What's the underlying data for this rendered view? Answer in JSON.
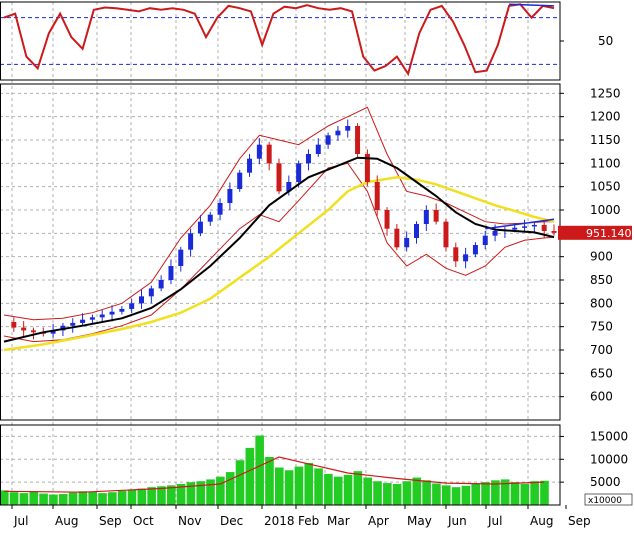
{
  "chart_data": {
    "type": "line",
    "x_labels": [
      "Jul",
      "Aug",
      "Sep",
      "Oct",
      "Nov",
      "Dec",
      "2018",
      "Feb",
      "Mar",
      "Apr",
      "May",
      "Jun",
      "Jul",
      "Aug",
      "Sep"
    ],
    "colors": {
      "background": "#ffffff",
      "grid": "#b0b0b0",
      "frame": "#000000",
      "up_candle": "#1a2ad8",
      "down_candle": "#cc1a1a",
      "bollinger": "#cc1a1a",
      "ma_short": "#000000",
      "ma_long": "#f0e020",
      "volume": "#22cc22",
      "volume_ma": "#cc1a1a",
      "oscillator": "#cc1a1a",
      "oscillator_signal": "#1a2ad8",
      "trend_line": "#1a2ad8",
      "price_tag_bg": "#cc1a1a",
      "price_tag_text": "#ffffff"
    },
    "panels": [
      {
        "id": "oscillator",
        "ylim": [
          0,
          100
        ],
        "y_ticks": [
          "50"
        ],
        "y_tick_values": [
          50
        ],
        "levels": [
          80,
          20
        ],
        "series_oscillator": [
          [
            0,
            80
          ],
          [
            1,
            85
          ],
          [
            2,
            30
          ],
          [
            3,
            15
          ],
          [
            4,
            60
          ],
          [
            5,
            85
          ],
          [
            6,
            55
          ],
          [
            7,
            40
          ],
          [
            8,
            90
          ],
          [
            9,
            93
          ],
          [
            10,
            92
          ],
          [
            11,
            90
          ],
          [
            12,
            88
          ],
          [
            13,
            92
          ],
          [
            14,
            90
          ],
          [
            15,
            92
          ],
          [
            16,
            90
          ],
          [
            17,
            85
          ],
          [
            18,
            55
          ],
          [
            19,
            80
          ],
          [
            20,
            95
          ],
          [
            21,
            92
          ],
          [
            22,
            88
          ],
          [
            23,
            45
          ],
          [
            24,
            85
          ],
          [
            25,
            94
          ],
          [
            26,
            92
          ],
          [
            27,
            96
          ],
          [
            28,
            92
          ],
          [
            29,
            90
          ],
          [
            30,
            92
          ],
          [
            31,
            88
          ],
          [
            32,
            30
          ],
          [
            33,
            12
          ],
          [
            34,
            18
          ],
          [
            35,
            30
          ],
          [
            36,
            8
          ],
          [
            37,
            60
          ],
          [
            38,
            90
          ],
          [
            39,
            95
          ],
          [
            40,
            75
          ],
          [
            41,
            45
          ],
          [
            42,
            10
          ],
          [
            43,
            12
          ],
          [
            44,
            45
          ],
          [
            45,
            95
          ],
          [
            46,
            97
          ],
          [
            47,
            80
          ],
          [
            48,
            95
          ],
          [
            49,
            92
          ]
        ],
        "series_signal": [
          [
            45,
            97
          ],
          [
            49,
            95
          ]
        ]
      },
      {
        "id": "price",
        "ylim": [
          550,
          1270
        ],
        "y_ticks": [
          "1250",
          "1200",
          "1150",
          "1100",
          "1050",
          "1000",
          "950",
          "900",
          "850",
          "800",
          "750",
          "700",
          "650",
          "600"
        ],
        "y_tick_values": [
          1250,
          1200,
          1150,
          1100,
          1050,
          1000,
          950,
          900,
          850,
          800,
          750,
          700,
          650,
          600
        ],
        "last_price": "951.140",
        "last_price_value": 951.14,
        "series_close": [
          [
            0,
            760
          ],
          [
            1,
            748
          ],
          [
            2,
            742
          ],
          [
            3,
            738
          ],
          [
            4,
            735
          ],
          [
            5,
            742
          ],
          [
            6,
            752
          ],
          [
            7,
            758
          ],
          [
            8,
            765
          ],
          [
            9,
            770
          ],
          [
            10,
            776
          ],
          [
            11,
            782
          ],
          [
            12,
            788
          ],
          [
            13,
            800
          ],
          [
            14,
            815
          ],
          [
            15,
            832
          ],
          [
            16,
            850
          ],
          [
            17,
            880
          ],
          [
            18,
            915
          ],
          [
            19,
            950
          ],
          [
            20,
            975
          ],
          [
            21,
            990
          ],
          [
            22,
            1015
          ],
          [
            23,
            1045
          ],
          [
            24,
            1080
          ],
          [
            25,
            1110
          ],
          [
            26,
            1140
          ],
          [
            27,
            1100
          ],
          [
            28,
            1040
          ],
          [
            29,
            1060
          ],
          [
            30,
            1100
          ],
          [
            31,
            1120
          ],
          [
            32,
            1140
          ],
          [
            33,
            1160
          ],
          [
            34,
            1170
          ],
          [
            35,
            1180
          ],
          [
            36,
            1120
          ],
          [
            37,
            1060
          ],
          [
            38,
            1000
          ],
          [
            39,
            960
          ],
          [
            40,
            920
          ],
          [
            41,
            940
          ],
          [
            42,
            970
          ],
          [
            43,
            1000
          ],
          [
            44,
            975
          ],
          [
            45,
            920
          ],
          [
            46,
            890
          ],
          [
            47,
            905
          ],
          [
            48,
            925
          ],
          [
            49,
            945
          ],
          [
            50,
            955
          ],
          [
            51,
            958
          ],
          [
            52,
            962
          ],
          [
            53,
            965
          ],
          [
            54,
            968
          ],
          [
            55,
            955
          ],
          [
            56,
            951
          ]
        ],
        "series_bb_upper": [
          [
            0,
            775
          ],
          [
            3,
            765
          ],
          [
            6,
            768
          ],
          [
            9,
            780
          ],
          [
            12,
            800
          ],
          [
            15,
            845
          ],
          [
            18,
            940
          ],
          [
            21,
            1010
          ],
          [
            24,
            1110
          ],
          [
            26,
            1160
          ],
          [
            28,
            1150
          ],
          [
            30,
            1140
          ],
          [
            33,
            1180
          ],
          [
            35,
            1200
          ],
          [
            37,
            1220
          ],
          [
            39,
            1120
          ],
          [
            41,
            1040
          ],
          [
            43,
            1030
          ],
          [
            45,
            1015
          ],
          [
            47,
            995
          ],
          [
            49,
            975
          ],
          [
            51,
            970
          ],
          [
            53,
            972
          ],
          [
            55,
            975
          ],
          [
            56,
            975
          ]
        ],
        "series_bb_lower": [
          [
            0,
            730
          ],
          [
            3,
            718
          ],
          [
            6,
            722
          ],
          [
            9,
            735
          ],
          [
            12,
            752
          ],
          [
            15,
            775
          ],
          [
            18,
            830
          ],
          [
            21,
            895
          ],
          [
            24,
            960
          ],
          [
            26,
            990
          ],
          [
            28,
            975
          ],
          [
            30,
            1020
          ],
          [
            33,
            1090
          ],
          [
            35,
            1100
          ],
          [
            37,
            1040
          ],
          [
            39,
            930
          ],
          [
            41,
            880
          ],
          [
            43,
            905
          ],
          [
            45,
            875
          ],
          [
            47,
            860
          ],
          [
            49,
            880
          ],
          [
            51,
            920
          ],
          [
            53,
            935
          ],
          [
            55,
            940
          ],
          [
            56,
            942
          ]
        ],
        "series_ma_short": [
          [
            0,
            718
          ],
          [
            4,
            738
          ],
          [
            8,
            752
          ],
          [
            12,
            768
          ],
          [
            15,
            790
          ],
          [
            18,
            830
          ],
          [
            21,
            880
          ],
          [
            24,
            940
          ],
          [
            27,
            1010
          ],
          [
            29,
            1040
          ],
          [
            31,
            1070
          ],
          [
            34,
            1095
          ],
          [
            36,
            1112
          ],
          [
            38,
            1110
          ],
          [
            40,
            1090
          ],
          [
            42,
            1060
          ],
          [
            44,
            1030
          ],
          [
            46,
            995
          ],
          [
            48,
            970
          ],
          [
            50,
            958
          ],
          [
            52,
            955
          ],
          [
            54,
            952
          ],
          [
            56,
            942
          ]
        ],
        "series_ma_long": [
          [
            0,
            700
          ],
          [
            4,
            712
          ],
          [
            8,
            728
          ],
          [
            12,
            745
          ],
          [
            15,
            760
          ],
          [
            18,
            780
          ],
          [
            21,
            810
          ],
          [
            24,
            855
          ],
          [
            27,
            900
          ],
          [
            30,
            950
          ],
          [
            33,
            1000
          ],
          [
            35,
            1040
          ],
          [
            37,
            1060
          ],
          [
            40,
            1070
          ],
          [
            42,
            1065
          ],
          [
            44,
            1055
          ],
          [
            46,
            1040
          ],
          [
            48,
            1025
          ],
          [
            50,
            1010
          ],
          [
            52,
            998
          ],
          [
            54,
            985
          ],
          [
            56,
            975
          ]
        ],
        "trend_line": [
          [
            49,
            960
          ],
          [
            56,
            980
          ]
        ]
      },
      {
        "id": "volume",
        "ylim": [
          0,
          17500
        ],
        "y_ticks": [
          "15000",
          "10000",
          "5000"
        ],
        "y_tick_values": [
          15000,
          10000,
          5000
        ],
        "multiplier_label": "x10000",
        "series_volume": [
          3200,
          2800,
          2600,
          3000,
          2500,
          2300,
          2400,
          2700,
          3000,
          2900,
          2600,
          2800,
          3100,
          3300,
          3600,
          3900,
          4100,
          4300,
          4600,
          5000,
          5200,
          5600,
          6200,
          7200,
          9800,
          12500,
          15200,
          10500,
          8200,
          7600,
          8400,
          9200,
          8000,
          6800,
          6200,
          6600,
          7400,
          6000,
          5200,
          4800,
          4600,
          5200,
          6000,
          5400,
          4700,
          4300,
          3900,
          4200,
          4600,
          5000,
          5400,
          5600,
          5000,
          4600,
          5200,
          5300
        ],
        "series_volume_ma": [
          [
            0,
            3000
          ],
          [
            8,
            2800
          ],
          [
            16,
            3600
          ],
          [
            22,
            4600
          ],
          [
            26,
            8500
          ],
          [
            28,
            10500
          ],
          [
            31,
            9000
          ],
          [
            35,
            7000
          ],
          [
            40,
            5800
          ],
          [
            45,
            4800
          ],
          [
            50,
            4600
          ],
          [
            55,
            5000
          ]
        ]
      }
    ]
  }
}
